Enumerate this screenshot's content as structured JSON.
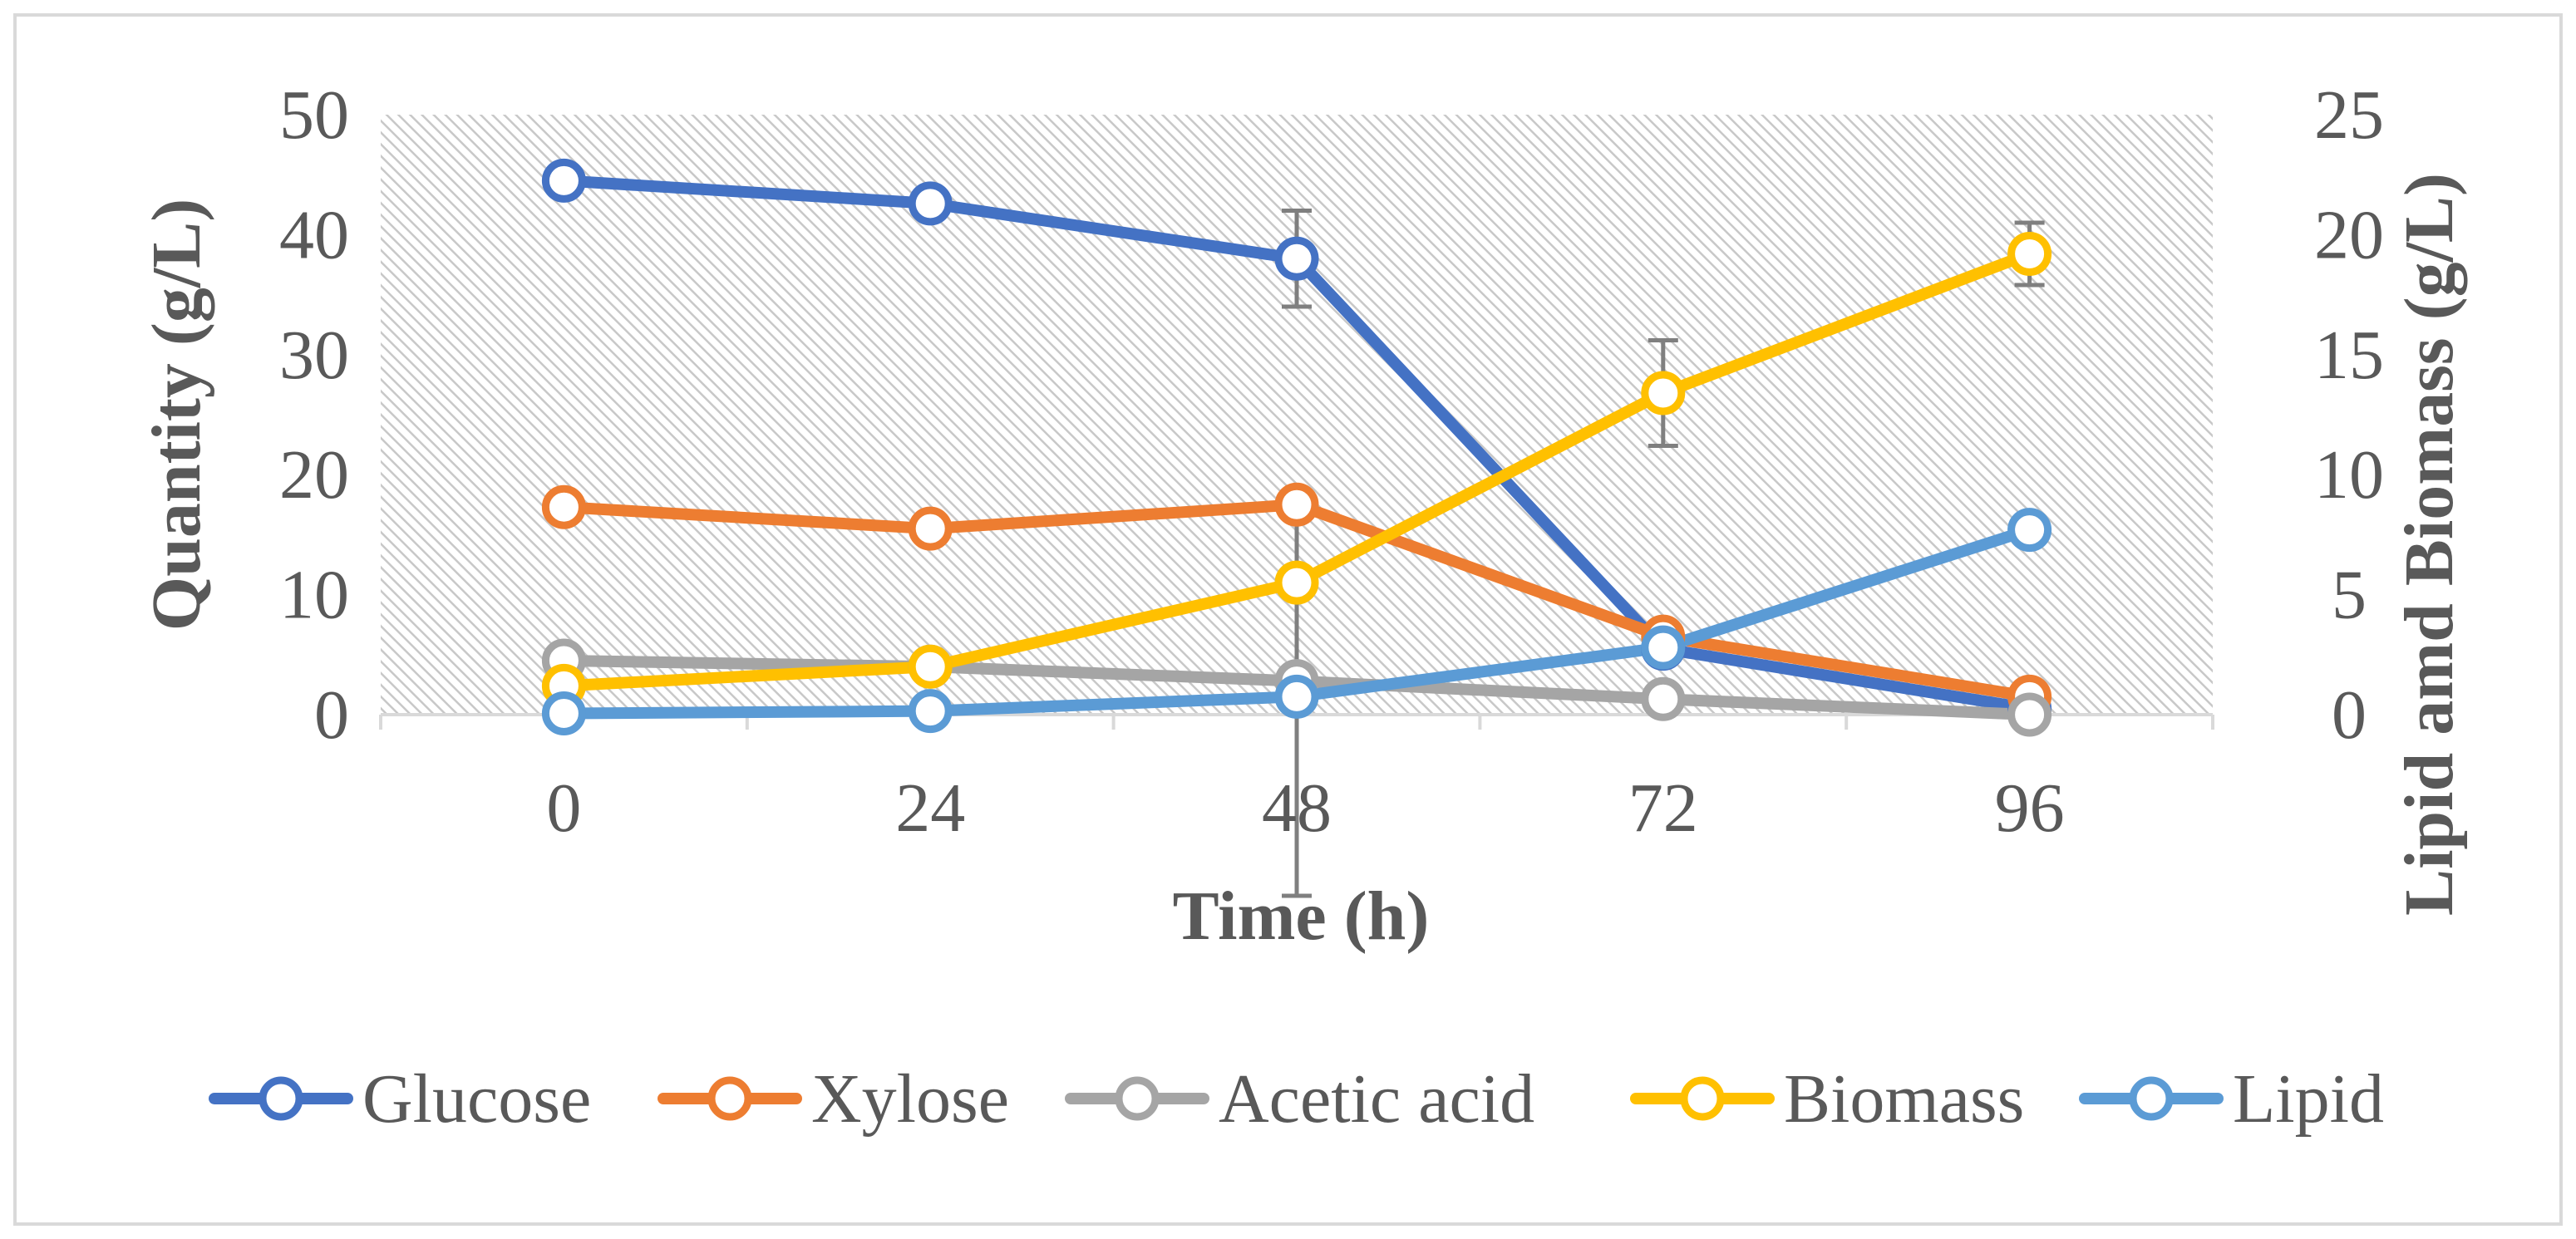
{
  "chart_data": {
    "type": "line",
    "title": "",
    "xlabel": "Time (h)",
    "ylabel": "Quantity (g/L)",
    "y2label": "Lipid amd Biomass (g/L)",
    "x": [
      0,
      24,
      48,
      72,
      96
    ],
    "x_tick_labels": [
      "0",
      "24",
      "48",
      "72",
      "96"
    ],
    "ylim": [
      0,
      50
    ],
    "y_ticks": [
      0,
      10,
      20,
      30,
      40,
      50
    ],
    "y_tick_labels": [
      "0",
      "10",
      "20",
      "30",
      "40",
      "50"
    ],
    "y2lim": [
      0,
      25
    ],
    "y2_ticks": [
      0,
      5,
      10,
      15,
      20,
      25
    ],
    "y2_tick_labels": [
      "0",
      "5",
      "10",
      "15",
      "20",
      "25"
    ],
    "grid": false,
    "background_pattern": "diagonal-hatch",
    "legend_position": "bottom",
    "series": [
      {
        "name": "Glucose",
        "axis": "left",
        "color": "#4472C4",
        "values": [
          44.5,
          42.6,
          38,
          5.5,
          0.5
        ],
        "errors": [
          0,
          0,
          4,
          0,
          0
        ]
      },
      {
        "name": "Xylose",
        "axis": "left",
        "color": "#ED7D31",
        "values": [
          17.3,
          15.5,
          17.5,
          6.5,
          1.5
        ],
        "errors": [
          0,
          0,
          0,
          0,
          0
        ]
      },
      {
        "name": "Acetic acid",
        "axis": "left",
        "color": "#A5A5A5",
        "values": [
          4.5,
          4,
          2.8,
          1.3,
          0
        ],
        "errors": [
          0,
          0,
          0,
          0,
          0
        ]
      },
      {
        "name": "Biomass",
        "axis": "right",
        "color": "#FFC000",
        "values": [
          1.2,
          2,
          5.5,
          13.4,
          19.2
        ],
        "errors": [
          0,
          0,
          0,
          2.2,
          1.3
        ]
      },
      {
        "name": "Lipid",
        "axis": "right",
        "color": "#5B9BD5",
        "values": [
          0.05,
          0.15,
          0.75,
          2.8,
          7.7
        ],
        "errors": [
          0,
          0,
          8.3,
          0,
          0
        ]
      }
    ]
  }
}
